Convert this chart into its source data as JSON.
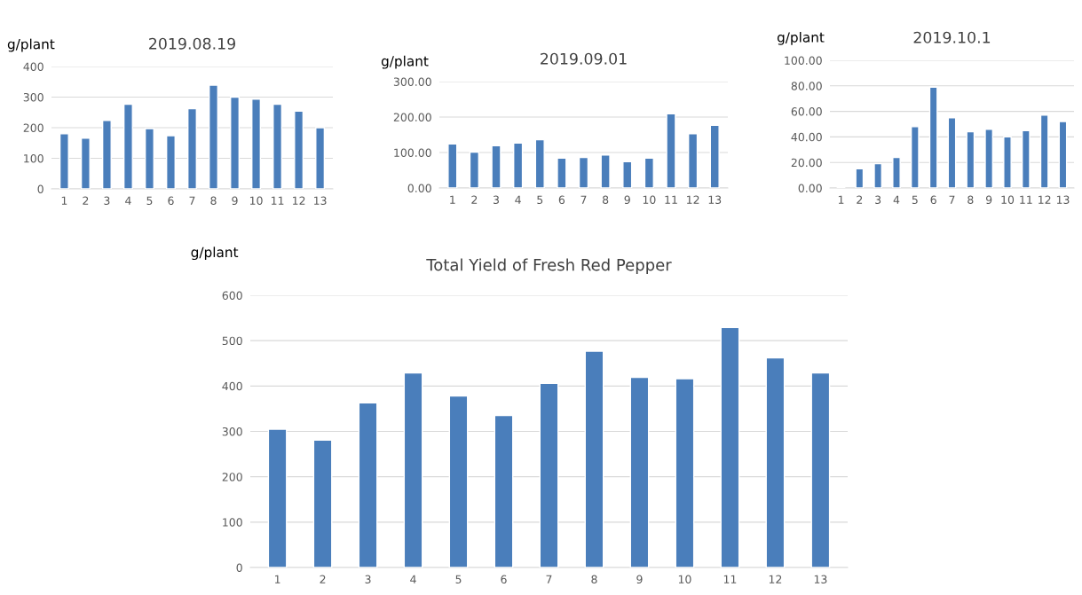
{
  "chart_data": [
    {
      "type": "bar",
      "title": "2019.08.19",
      "ylabel": "g/plant",
      "categories": [
        "1",
        "2",
        "3",
        "4",
        "5",
        "6",
        "7",
        "8",
        "9",
        "10",
        "11",
        "12",
        "13"
      ],
      "values": [
        180,
        166,
        224,
        277,
        197,
        174,
        262,
        339,
        300,
        293,
        277,
        254,
        200
      ],
      "color": "#4a7ebb",
      "ylim": [
        0,
        400
      ],
      "yticks": [
        0,
        100,
        200,
        300,
        400
      ],
      "grid": "y"
    },
    {
      "type": "bar",
      "title": "2019.09.01",
      "ylabel": "g/plant",
      "categories": [
        "1",
        "2",
        "3",
        "4",
        "5",
        "6",
        "7",
        "8",
        "9",
        "10",
        "11",
        "12",
        "13"
      ],
      "values": [
        124,
        101,
        119,
        127,
        136,
        84,
        86,
        93,
        74,
        84,
        209,
        153,
        177
      ],
      "color": "#4a7ebb",
      "ylim": [
        0,
        300
      ],
      "yticks": [
        {
          "value": 0,
          "label": "0.00"
        },
        {
          "value": 100,
          "label": "100.00"
        },
        {
          "value": 200,
          "label": "200.00"
        },
        {
          "value": 300,
          "label": "300.00"
        }
      ],
      "grid": "y"
    },
    {
      "type": "bar",
      "title": "2019.10.1",
      "ylabel": "g/plant",
      "categories": [
        "1",
        "2",
        "3",
        "4",
        "5",
        "6",
        "7",
        "8",
        "9",
        "10",
        "11",
        "12",
        "13"
      ],
      "values": [
        1,
        15,
        19,
        24,
        48,
        79,
        55,
        44,
        46,
        40,
        45,
        57,
        52
      ],
      "color": "#4a7ebb",
      "ylim": [
        0,
        100
      ],
      "yticks": [
        {
          "value": 0,
          "label": "0.00"
        },
        {
          "value": 20,
          "label": "20.00"
        },
        {
          "value": 40,
          "label": "40.00"
        },
        {
          "value": 60,
          "label": "60.00"
        },
        {
          "value": 80,
          "label": "80.00"
        },
        {
          "value": 100,
          "label": "100.00"
        }
      ],
      "grid": "y"
    },
    {
      "type": "bar",
      "title": "Total Yield of Fresh Red Pepper",
      "ylabel": "g/plant",
      "categories": [
        "1",
        "2",
        "3",
        "4",
        "5",
        "6",
        "7",
        "8",
        "9",
        "10",
        "11",
        "12",
        "13"
      ],
      "values": [
        305,
        281,
        363,
        429,
        378,
        335,
        406,
        477,
        419,
        416,
        529,
        462,
        429
      ],
      "color": "#4a7ebb",
      "ylim": [
        0,
        600
      ],
      "yticks": [
        0,
        100,
        200,
        300,
        400,
        500,
        600
      ],
      "grid": "y"
    }
  ]
}
